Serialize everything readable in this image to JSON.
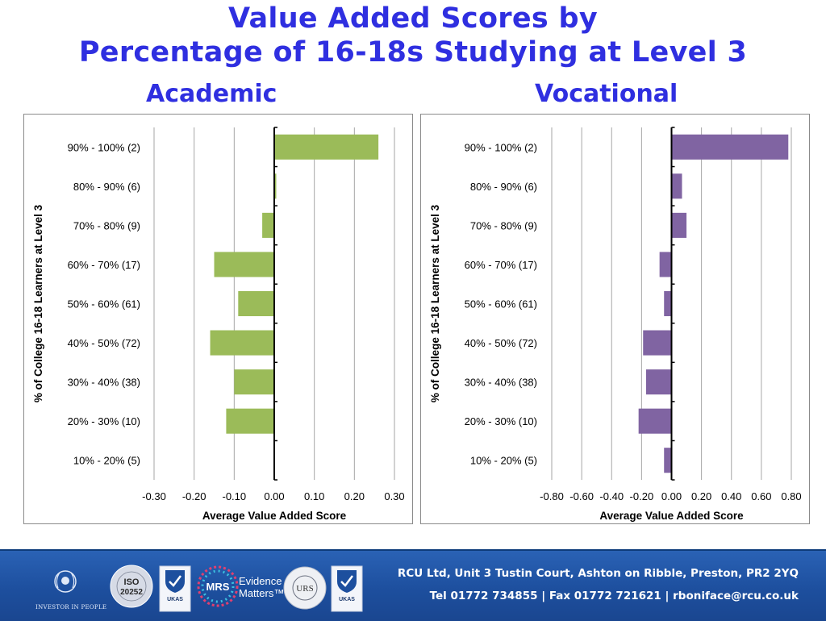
{
  "title": {
    "line1": "Value Added Scores by",
    "line2": "Percentage of 16-18s Studying at Level 3"
  },
  "panels": {
    "left_title": "Academic",
    "right_title": "Vocational"
  },
  "footer": {
    "address": "RCU Ltd, Unit 3 Tustin Court, Ashton on Ribble, Preston, PR2 2YQ",
    "contact": "Tel 01772 734855 | Fax 01772 721621  | rboniface@rcu.co.uk",
    "logos": [
      {
        "name": "investors-in-people-logo",
        "text": "INVESTOR IN PEOPLE"
      },
      {
        "name": "market-research-society-logo",
        "text": "ISO 20252"
      },
      {
        "name": "ukas-logo-1",
        "text": "UKAS"
      },
      {
        "name": "mrs-evidence-matters-logo",
        "text": "Evidence Matters"
      },
      {
        "name": "urs-iso-27001-logo",
        "text": "URS"
      },
      {
        "name": "ukas-logo-2",
        "text": "UKAS"
      }
    ],
    "mrs_label": "MRS",
    "mrs_sub1": "Evidence",
    "mrs_sub2": "Matters™",
    "iso_label": "ISO",
    "iso_number": "20252",
    "iip_label": "INVESTOR IN PEOPLE",
    "ukas_label": "UKAS",
    "urs_label": "URS"
  },
  "chart_data": [
    {
      "type": "bar",
      "orientation": "horizontal",
      "title": "",
      "categories": [
        "90% - 100% (2)",
        "80% - 90% (6)",
        "70% - 80% (9)",
        "60% - 70% (17)",
        "50% - 60% (61)",
        "40% - 50% (72)",
        "30% - 40% (38)",
        "20% - 30% (10)",
        "10% - 20% (5)"
      ],
      "values": [
        0.26,
        0.005,
        -0.03,
        -0.15,
        -0.09,
        -0.16,
        -0.1,
        -0.12,
        0
      ],
      "xlabel": "Average Value Added Score",
      "ylabel": "% of College 16-18 Learners at Level 3",
      "xlim": [
        -0.3,
        0.3
      ],
      "xticks": [
        "-0.30",
        "-0.20",
        "-0.10",
        "0.00",
        "0.10",
        "0.20",
        "0.30"
      ],
      "grid": true,
      "color": "#9bbb59"
    },
    {
      "type": "bar",
      "orientation": "horizontal",
      "title": "",
      "categories": [
        "90% - 100% (2)",
        "80% - 90% (6)",
        "70% - 80% (9)",
        "60% - 70% (17)",
        "50% - 60% (61)",
        "40% - 50% (72)",
        "30% - 40% (38)",
        "20% - 30% (10)",
        "10% - 20% (5)"
      ],
      "values": [
        0.78,
        0.07,
        0.1,
        -0.08,
        -0.05,
        -0.19,
        -0.17,
        -0.22,
        -0.05
      ],
      "xlabel": "Average Value Added Score",
      "ylabel": "% of College 16-18 Learners at Level 3",
      "xlim": [
        -0.8,
        0.8
      ],
      "xticks": [
        "-0.80",
        "-0.60",
        "-0.40",
        "-0.20",
        "0.00",
        "0.20",
        "0.40",
        "0.60",
        "0.80"
      ],
      "grid": true,
      "color": "#8064a2"
    }
  ]
}
